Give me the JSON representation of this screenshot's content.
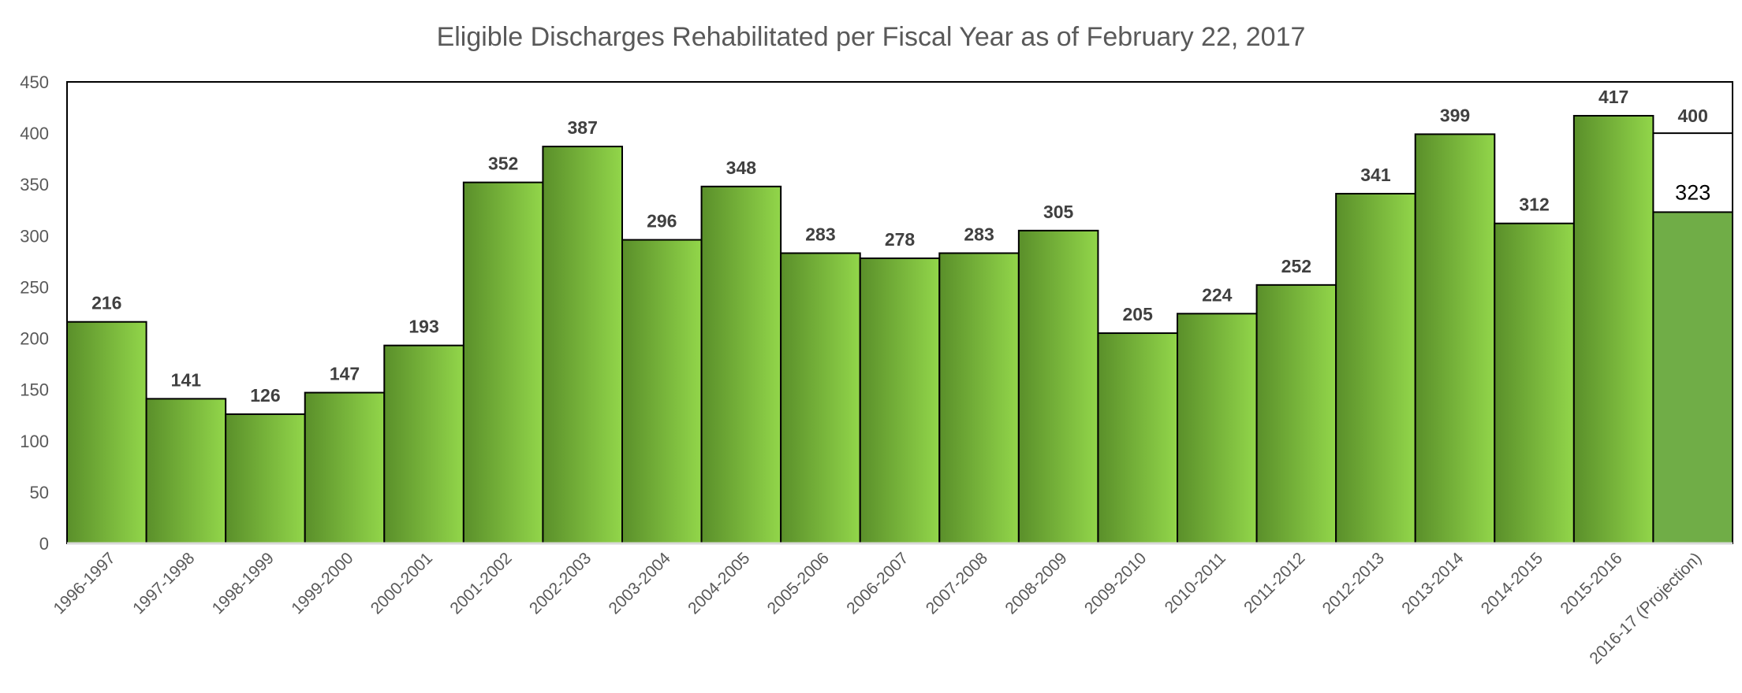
{
  "chart_data": {
    "type": "bar",
    "title": "Eligible Discharges Rehabilitated per Fiscal Year as of February 22, 2017",
    "xlabel": "",
    "ylabel": "",
    "ylim": [
      0,
      450
    ],
    "yticks": [
      0,
      50,
      100,
      150,
      200,
      250,
      300,
      350,
      400,
      450
    ],
    "grid": false,
    "legend": "none",
    "categories": [
      "1996-1997",
      "1997-1998",
      "1998-1999",
      "1999-2000",
      "2000-2001",
      "2001-2002",
      "2002-2003",
      "2003-2004",
      "2004-2005",
      "2005-2006",
      "2006-2007",
      "2007-2008",
      "2008-2009",
      "2009-2010",
      "2010-2011",
      "2011-2012",
      "2012-2013",
      "2013-2014",
      "2014-2015",
      "2015-2016",
      "2016-17 (Projection)"
    ],
    "values": [
      216,
      141,
      126,
      147,
      193,
      352,
      387,
      296,
      348,
      283,
      278,
      283,
      305,
      205,
      224,
      252,
      341,
      399,
      312,
      417,
      323
    ],
    "projection": {
      "category": "2016-17 (Projection)",
      "actual": 323,
      "projected": 400
    },
    "colors": {
      "bar_dark": "#5a8f2a",
      "bar_light": "#92d64a",
      "projection_fill": "#70ad47",
      "text": "#595959",
      "label": "#404040",
      "outline": "#000000"
    }
  }
}
